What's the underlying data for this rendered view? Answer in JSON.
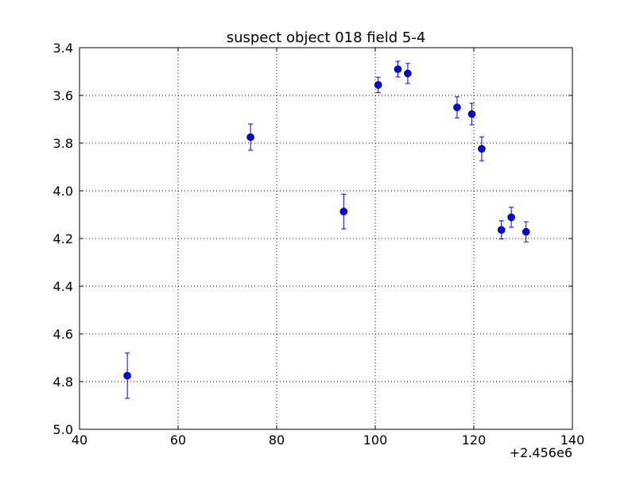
{
  "chart_data": {
    "type": "scatter",
    "title": "suspect object 018 field 5-4",
    "xlabel": "",
    "ylabel": "",
    "x_offset_label": "+2.456e6",
    "xlim": [
      40,
      140
    ],
    "ylim": [
      3.4,
      5.0
    ],
    "y_inverted": true,
    "grid": true,
    "x_ticks": [
      "40",
      "60",
      "80",
      "100",
      "120",
      "140"
    ],
    "y_ticks": [
      "3.4",
      "3.6",
      "3.8",
      "4.0",
      "4.2",
      "4.4",
      "4.6",
      "4.8",
      "5.0"
    ],
    "series": [
      {
        "color": "#0000ff",
        "points": [
          {
            "x": 49.7,
            "y": 4.775,
            "err": 0.095
          },
          {
            "x": 74.7,
            "y": 3.775,
            "err": 0.055
          },
          {
            "x": 93.6,
            "y": 4.087,
            "err": 0.073
          },
          {
            "x": 100.6,
            "y": 3.556,
            "err": 0.032
          },
          {
            "x": 104.6,
            "y": 3.49,
            "err": 0.033
          },
          {
            "x": 106.6,
            "y": 3.508,
            "err": 0.042
          },
          {
            "x": 116.6,
            "y": 3.65,
            "err": 0.044
          },
          {
            "x": 119.6,
            "y": 3.678,
            "err": 0.045
          },
          {
            "x": 121.6,
            "y": 3.824,
            "err": 0.05
          },
          {
            "x": 125.6,
            "y": 4.164,
            "err": 0.038
          },
          {
            "x": 127.6,
            "y": 4.111,
            "err": 0.042
          },
          {
            "x": 130.6,
            "y": 4.172,
            "err": 0.042
          }
        ]
      }
    ]
  }
}
